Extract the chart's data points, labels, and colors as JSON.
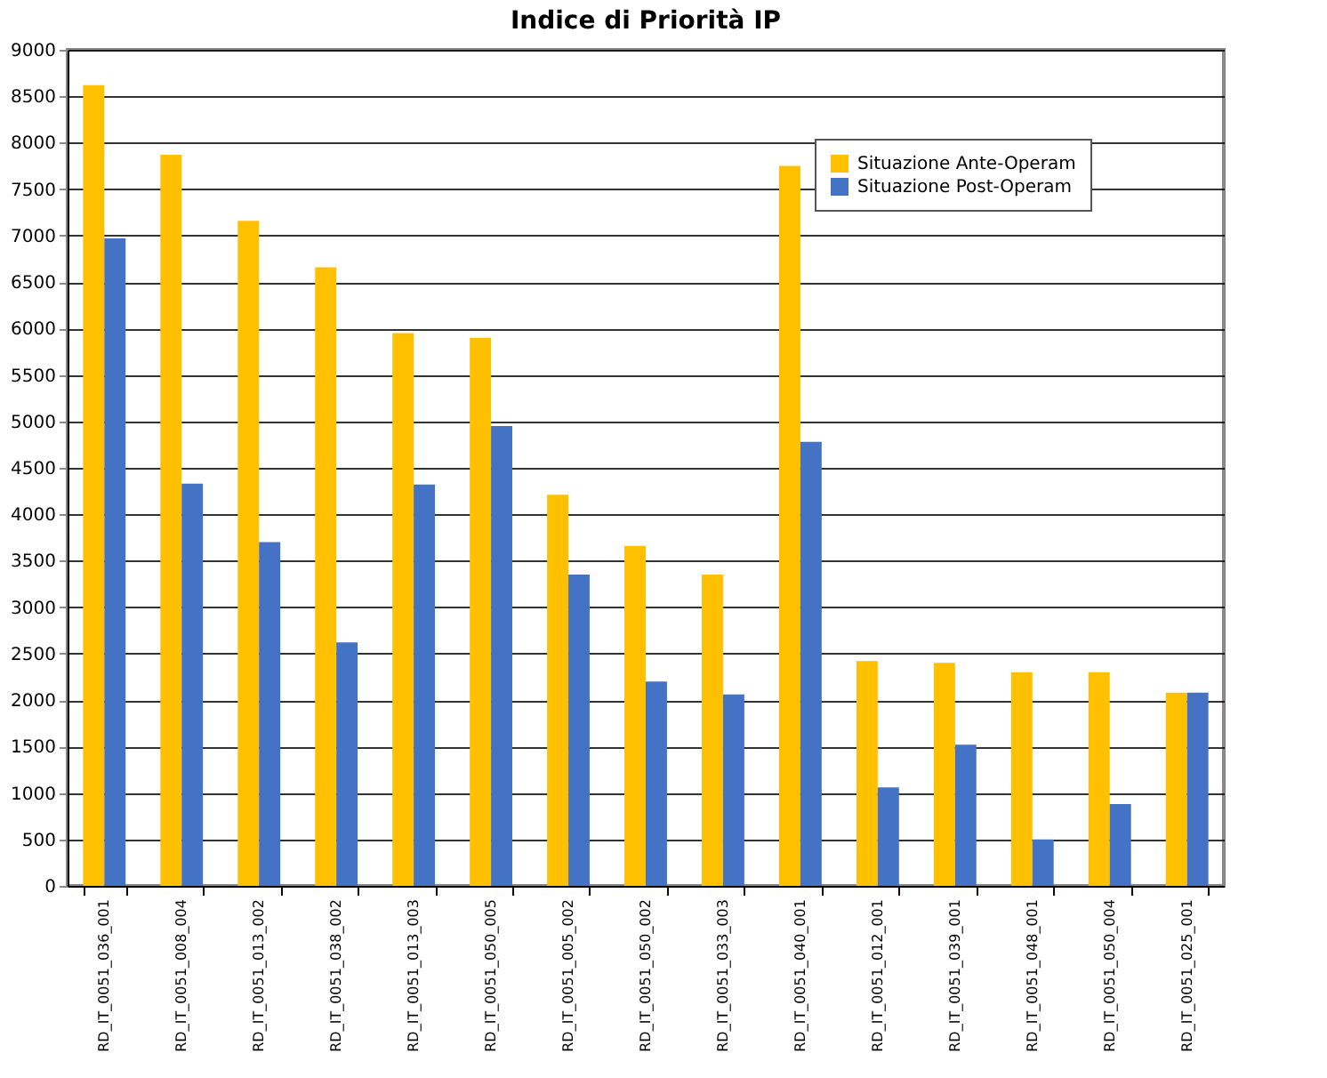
{
  "chart_data": {
    "type": "bar",
    "title": "Indice di Priorità IP",
    "categories": [
      "RD_IT_0051_036_001",
      "RD_IT_0051_008_004",
      "RD_IT_0051_013_002",
      "RD_IT_0051_038_002",
      "RD_IT_0051_013_003",
      "RD_IT_0051_050_005",
      "RD_IT_0051_005_002",
      "RD_IT_0051_050_002",
      "RD_IT_0051_033_003",
      "RD_IT_0051_040_001",
      "RD_IT_0051_012_001",
      "RD_IT_0051_039_001",
      "RD_IT_0051_048_001",
      "RD_IT_0051_050_004",
      "RD_IT_0051_025_001"
    ],
    "series": [
      {
        "name": "Situazione Ante-Operam",
        "color": "#ffc000",
        "values": [
          8620,
          7870,
          7160,
          6660,
          5950,
          5900,
          4210,
          3660,
          3350,
          7750,
          2420,
          2400,
          2300,
          2300,
          2080
        ]
      },
      {
        "name": "Situazione Post-Operam",
        "color": "#4472c4",
        "values": [
          6970,
          4330,
          3700,
          2620,
          4320,
          4950,
          3350,
          2200,
          2060,
          4780,
          1060,
          1520,
          500,
          880,
          2080
        ]
      }
    ],
    "ylim": [
      0,
      9000
    ],
    "yticks": [
      0,
      500,
      1000,
      1500,
      2000,
      2500,
      3000,
      3500,
      4000,
      4500,
      5000,
      5500,
      6000,
      6500,
      7000,
      7500,
      8000,
      8500,
      9000
    ],
    "grid": "y",
    "legend": "top right"
  }
}
